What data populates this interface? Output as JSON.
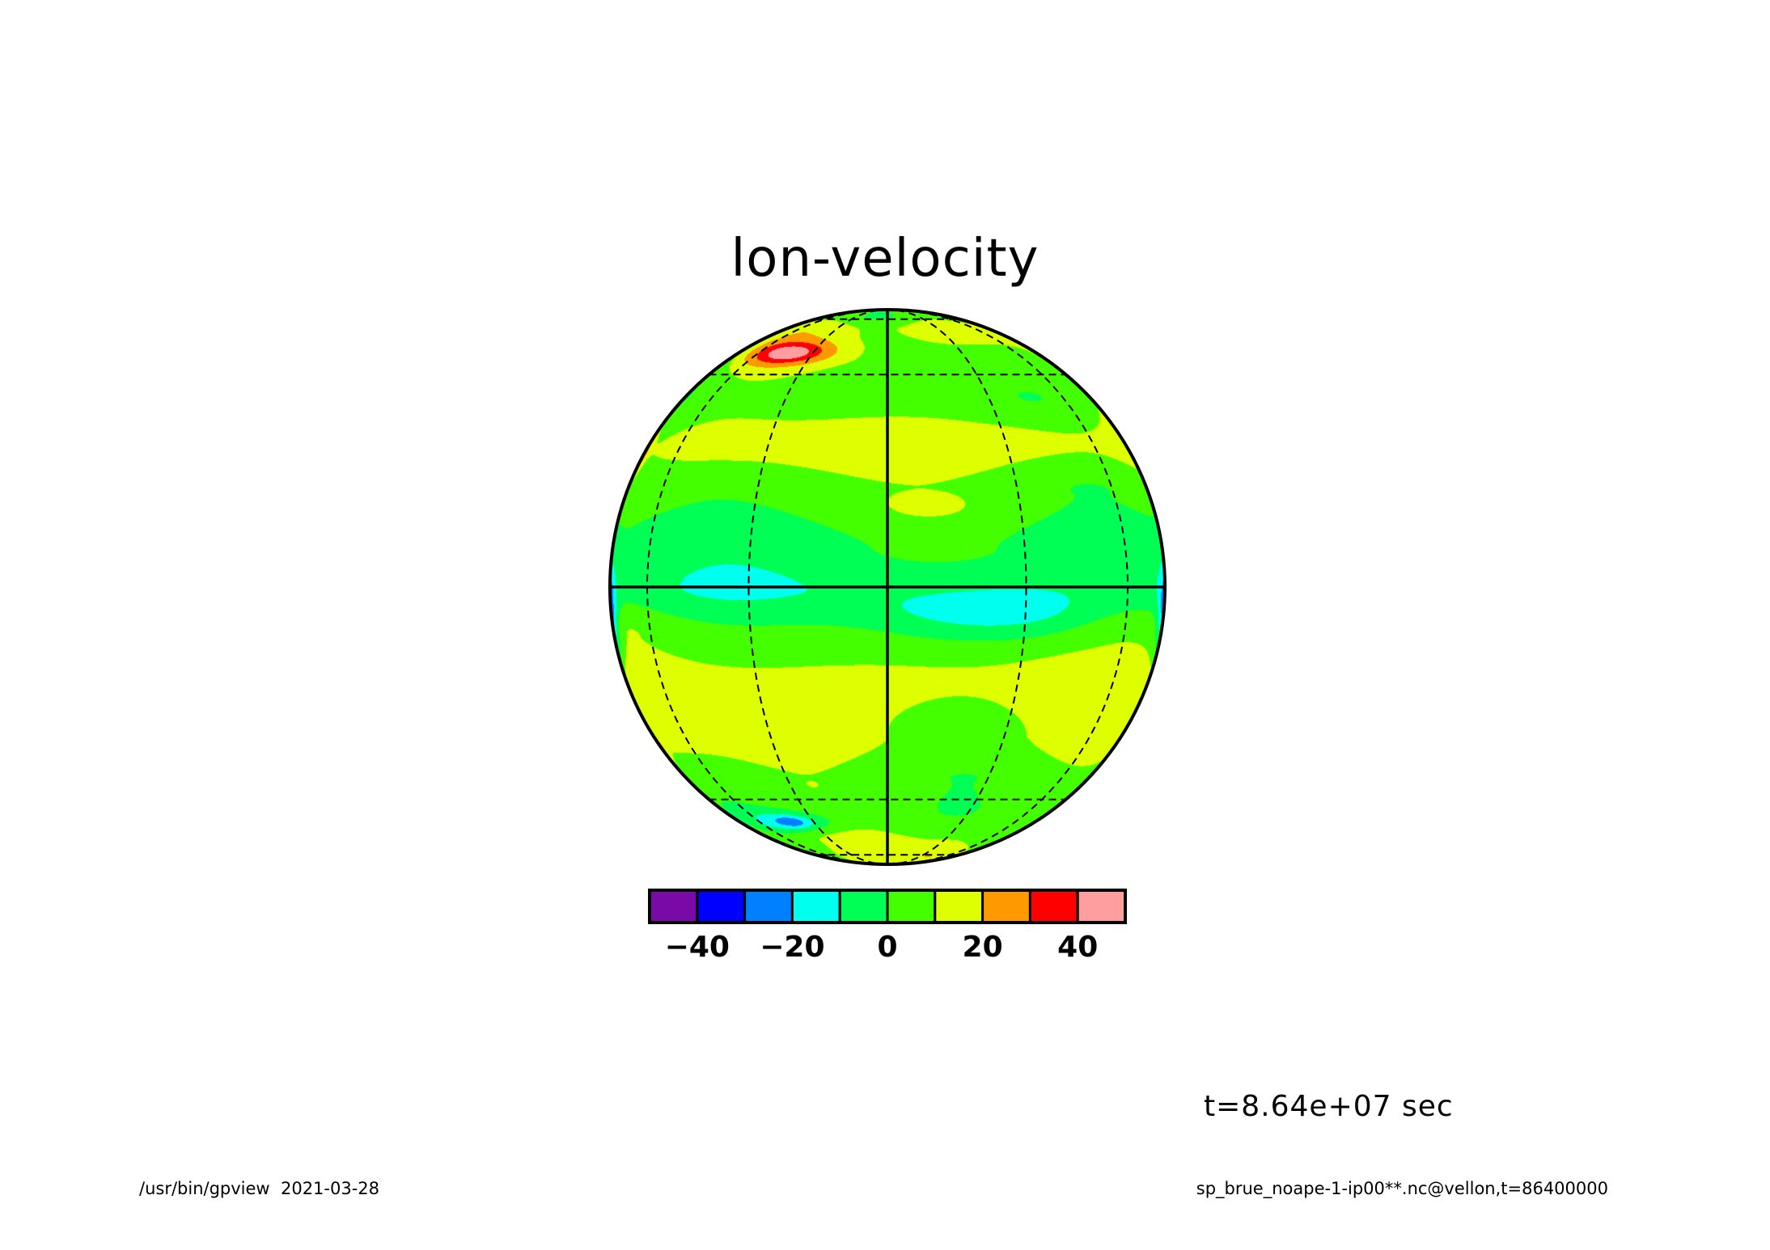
{
  "title": "lon-velocity",
  "time_label": "t=8.64e+07 sec",
  "footer": {
    "program": "/usr/bin/gpview",
    "date": "2021-03-28",
    "source": "sp_brue_noape-1-ip00**.nc@vellon,t=86400000"
  },
  "chart_data": {
    "type": "heatmap",
    "projection": "orthographic globe",
    "title": "lon-velocity",
    "grid": true,
    "colorbar": {
      "levels": [
        -50,
        -40,
        -30,
        -20,
        -10,
        0,
        10,
        20,
        30,
        40,
        50
      ],
      "colors": [
        "#7a0aa8",
        "#0000ff",
        "#0080ff",
        "#00ffee",
        "#00ff55",
        "#44ff00",
        "#ddff00",
        "#ff9900",
        "#ff0000",
        "#ff9e9e"
      ],
      "tick_values": [
        -40,
        -20,
        0,
        20,
        40
      ],
      "tick_labels": [
        "−40",
        "−20",
        "0",
        "20",
        "40"
      ]
    },
    "bands": [
      {
        "lat": 84,
        "value": 8
      },
      {
        "lat": 78,
        "value": 3
      },
      {
        "lat": 68,
        "value": 14
      },
      {
        "lat": 56,
        "value": 8
      },
      {
        "lat": 44,
        "value": 4
      },
      {
        "lat": 30,
        "value": 13
      },
      {
        "lat": 20,
        "value": 4
      },
      {
        "lat": 8,
        "value": -3
      },
      {
        "lat": 0,
        "value": -7
      },
      {
        "lat": -10,
        "value": 6
      },
      {
        "lat": -20,
        "value": 14
      },
      {
        "lat": -32,
        "value": 12
      },
      {
        "lat": -44,
        "value": 5
      },
      {
        "lat": -55,
        "value": 3
      },
      {
        "lat": -66,
        "value": 10
      },
      {
        "lat": -78,
        "value": 13
      },
      {
        "lat": -86,
        "value": 16
      }
    ],
    "blobs": [
      {
        "lon": -43,
        "lat": 58,
        "dlon": 26,
        "dlat": 5,
        "value": 26
      },
      {
        "lon": -40,
        "lat": 57,
        "dlon": 12,
        "dlat": 3,
        "value": 12
      },
      {
        "lon": 9,
        "lat": 17,
        "dlon": 7,
        "dlat": 2.2,
        "value": 10
      },
      {
        "lon": 22,
        "lat": -6,
        "dlon": 26,
        "dlat": 5,
        "value": -18
      },
      {
        "lon": -84,
        "lat": -6,
        "dlon": 7,
        "dlat": 11,
        "value": -24
      },
      {
        "lon": -87,
        "lat": -5,
        "dlon": 4,
        "dlat": 5,
        "value": -14
      },
      {
        "lon": -42,
        "lat": -58,
        "dlon": 20,
        "dlat": 4,
        "value": -22
      },
      {
        "lon": -40,
        "lat": -58,
        "dlon": 7,
        "dlat": 2,
        "value": -12
      },
      {
        "lon": 84,
        "lat": -5,
        "dlon": 6,
        "dlat": 8,
        "value": -20
      },
      {
        "lon": 35,
        "lat": 32,
        "dlon": 30,
        "dlat": 4,
        "value": 6
      },
      {
        "lon": -8,
        "lat": 85,
        "dlon": 30,
        "dlat": 3,
        "value": -16
      },
      {
        "lon": 55,
        "lat": 83,
        "dlon": 25,
        "dlat": 3,
        "value": -18
      },
      {
        "lon": -85,
        "lat": 28,
        "dlon": 5,
        "dlat": 6,
        "value": 16
      },
      {
        "lon": -85,
        "lat": -36,
        "dlon": 5,
        "dlat": 4,
        "value": 14
      },
      {
        "lon": 50,
        "lat": -75,
        "dlon": 30,
        "dlat": 5,
        "value": 6
      },
      {
        "lon": 15,
        "lat": -86,
        "dlon": 25,
        "dlat": 2,
        "value": 14
      },
      {
        "lon": 55,
        "lat": 55,
        "dlon": 25,
        "dlat": 5,
        "value": -5
      }
    ]
  }
}
